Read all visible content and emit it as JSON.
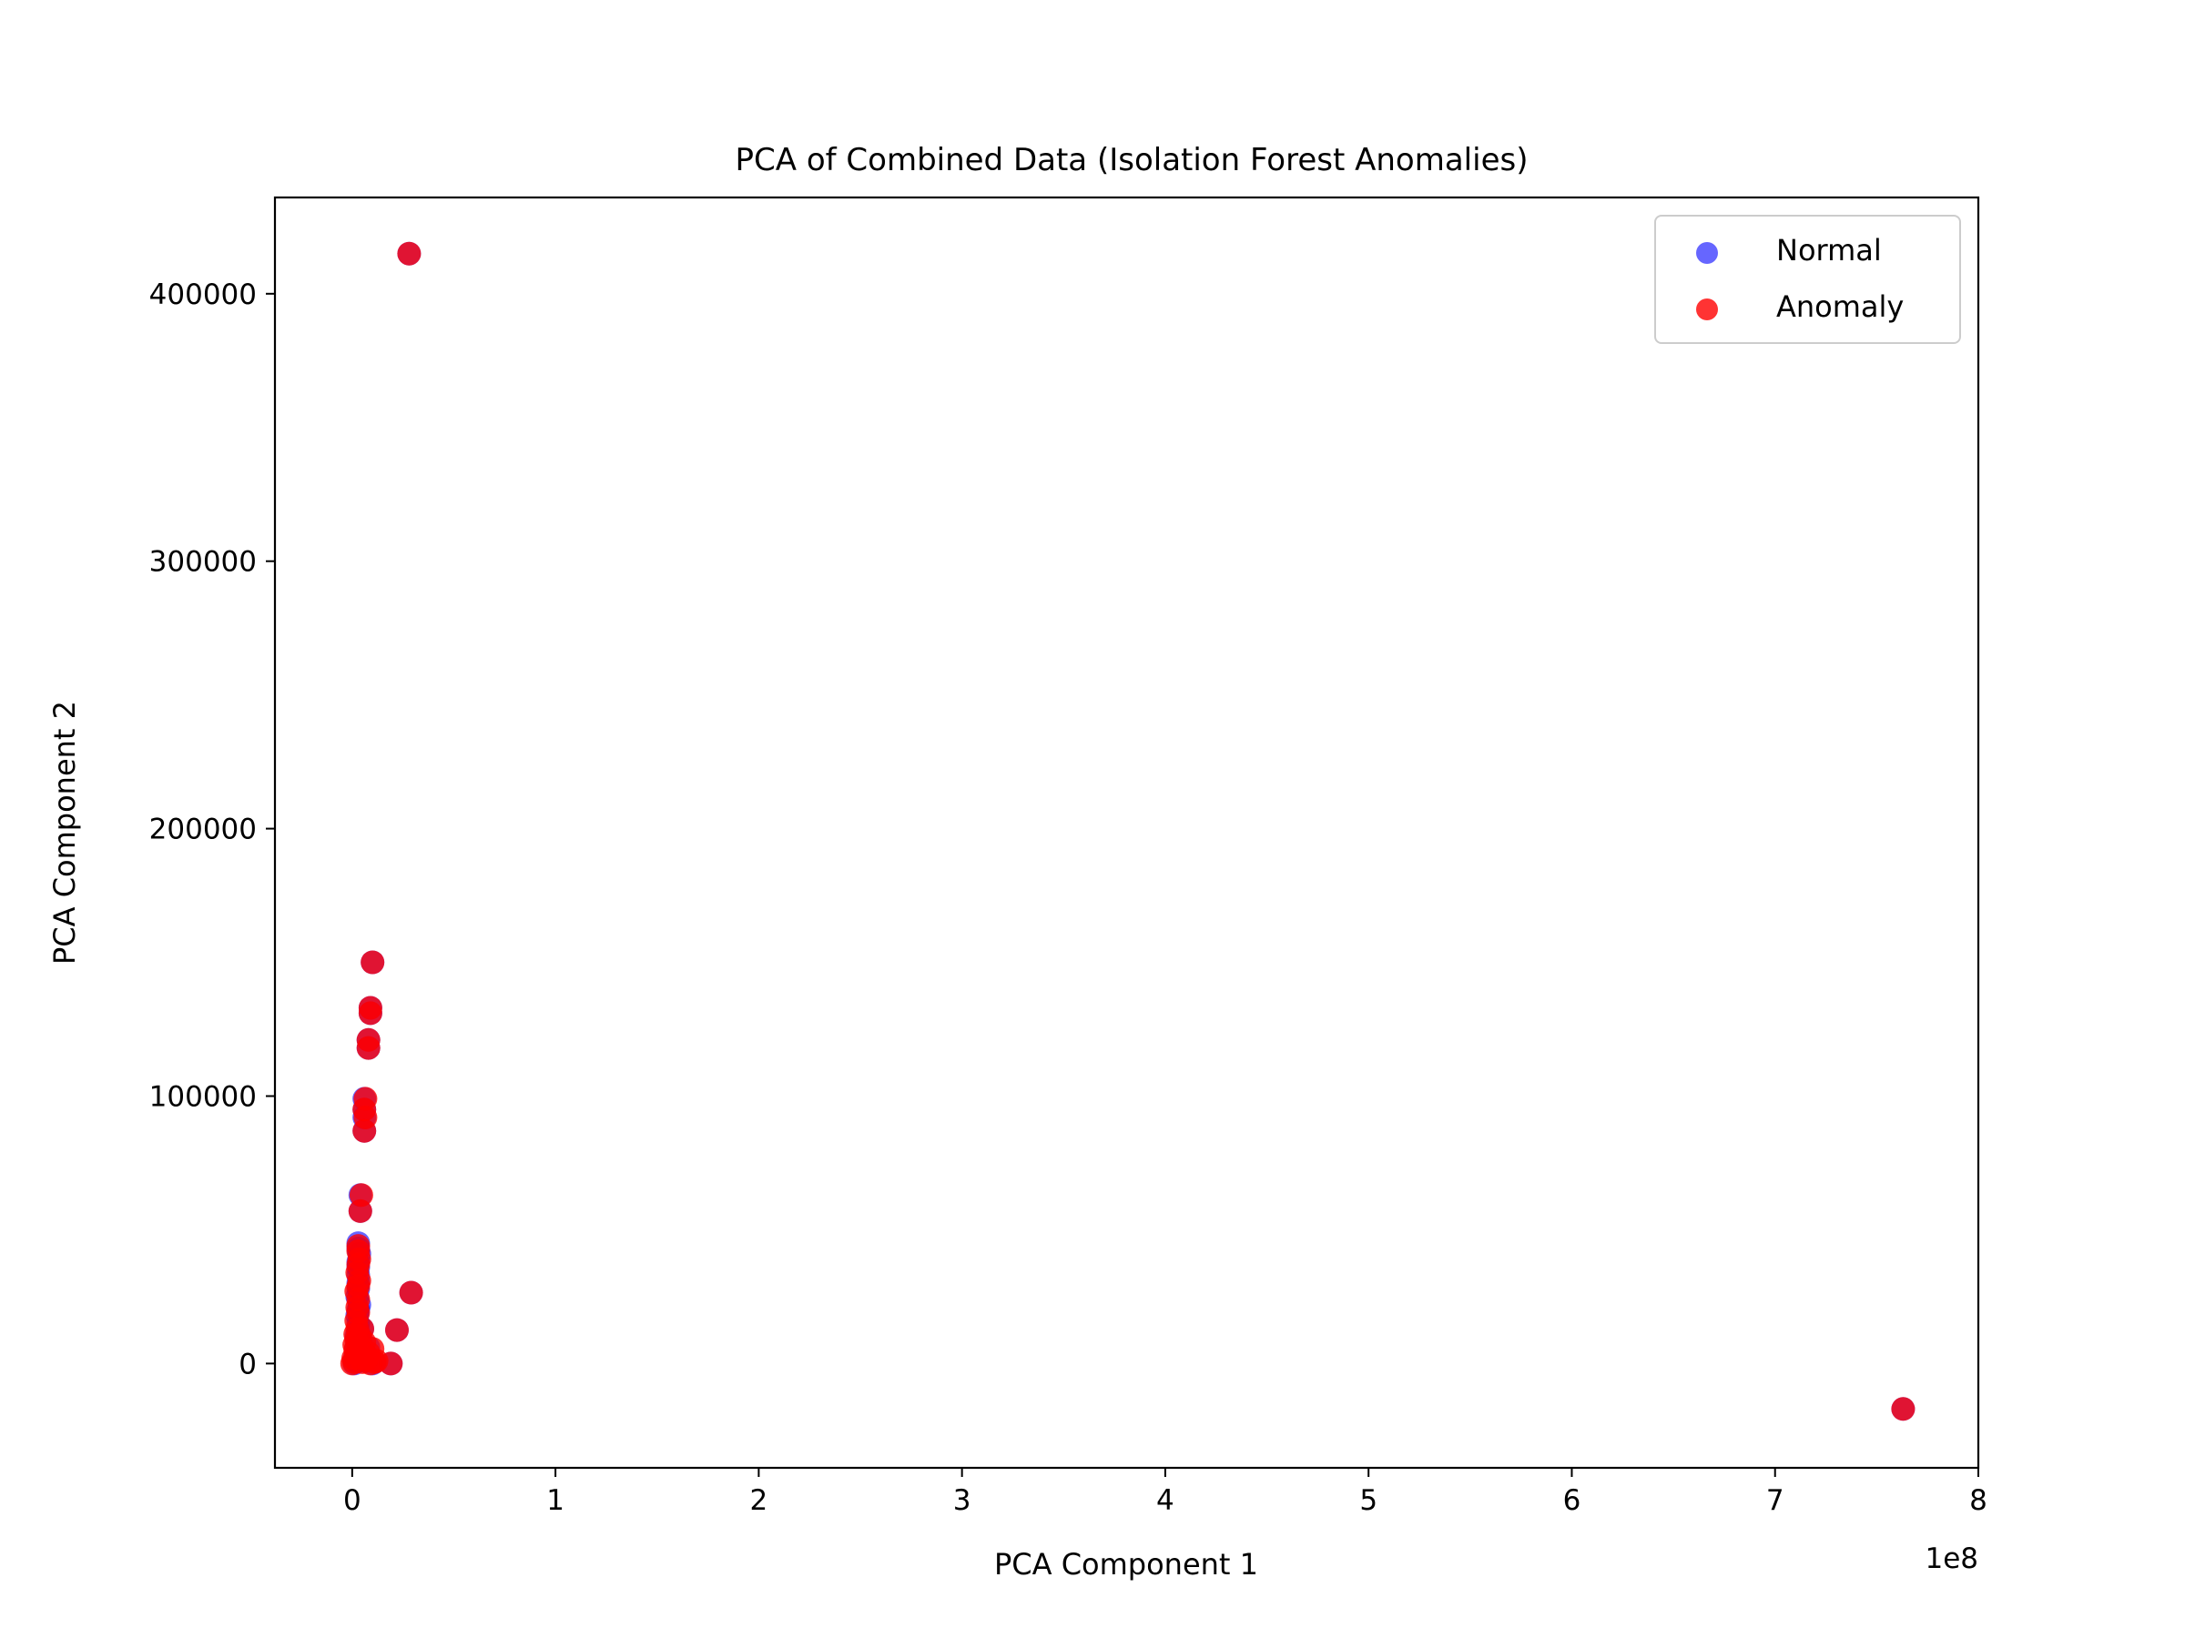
{
  "chart_data": {
    "type": "scatter",
    "title": "PCA of Combined Data (Isolation Forest Anomalies)",
    "xlabel": "PCA Component 1",
    "ylabel": "PCA Component 2",
    "x_offset_text": "1e8",
    "x_scale_factor": 100000000,
    "xlim": [
      -0.38,
      8.0
    ],
    "ylim": [
      -39000,
      436000
    ],
    "x_ticks": [
      0,
      1,
      2,
      3,
      4,
      5,
      6,
      7,
      8
    ],
    "x_tick_labels": [
      "0",
      "1",
      "2",
      "3",
      "4",
      "5",
      "6",
      "7",
      "8"
    ],
    "y_ticks": [
      0,
      100000,
      200000,
      300000,
      400000
    ],
    "y_tick_labels": [
      "0",
      "100000",
      "200000",
      "300000",
      "400000"
    ],
    "grid": false,
    "legend": {
      "placement": "top-right",
      "entries": [
        "Normal",
        "Anomaly"
      ]
    },
    "series": [
      {
        "name": "Normal",
        "color": "#0000ff",
        "points": [
          [
            0.01,
            0
          ],
          [
            0.02,
            1000
          ],
          [
            0.015,
            2500
          ],
          [
            0.03,
            4000
          ],
          [
            0.02,
            6000
          ],
          [
            0.04,
            8000
          ],
          [
            0.02,
            10000
          ],
          [
            0.03,
            12000
          ],
          [
            0.03,
            15000
          ],
          [
            0.025,
            18000
          ],
          [
            0.03,
            20000
          ],
          [
            0.035,
            22000
          ],
          [
            0.025,
            25000
          ],
          [
            0.03,
            28000
          ],
          [
            0.03,
            30000
          ],
          [
            0.03,
            33000
          ],
          [
            0.03,
            36000
          ],
          [
            0.03,
            38000
          ],
          [
            0.035,
            41000
          ],
          [
            0.03,
            43000
          ],
          [
            0.03,
            45000
          ],
          [
            0.04,
            57000
          ],
          [
            0.04,
            63000
          ],
          [
            0.06,
            87000
          ],
          [
            0.06,
            92000
          ],
          [
            0.06,
            95000
          ],
          [
            0.06,
            99000
          ],
          [
            0.08,
            118000
          ],
          [
            0.08,
            121000
          ],
          [
            0.09,
            131000
          ],
          [
            0.09,
            133000
          ],
          [
            0.1,
            150000
          ],
          [
            0.28,
            415000
          ],
          [
            0.29,
            26500
          ],
          [
            0.22,
            12500
          ],
          [
            0.19,
            0
          ],
          [
            0.06,
            1000
          ],
          [
            0.08,
            2000
          ],
          [
            0.1,
            0
          ],
          [
            0.08,
            6000
          ],
          [
            0.05,
            13000
          ],
          [
            7.63,
            -17000
          ]
        ]
      },
      {
        "name": "Anomaly",
        "color": "#ff0000",
        "points": [
          [
            0.0,
            0
          ],
          [
            0.01,
            500
          ],
          [
            0.005,
            2000
          ],
          [
            0.02,
            3500
          ],
          [
            0.015,
            5000
          ],
          [
            0.01,
            7000
          ],
          [
            0.02,
            9000
          ],
          [
            0.015,
            11000
          ],
          [
            0.025,
            13000
          ],
          [
            0.02,
            16000
          ],
          [
            0.03,
            19000
          ],
          [
            0.025,
            21000
          ],
          [
            0.03,
            24000
          ],
          [
            0.02,
            27000
          ],
          [
            0.03,
            29000
          ],
          [
            0.035,
            31000
          ],
          [
            0.025,
            34000
          ],
          [
            0.03,
            37000
          ],
          [
            0.035,
            39000
          ],
          [
            0.03,
            42000
          ],
          [
            0.03,
            44000
          ],
          [
            0.04,
            57000
          ],
          [
            0.045,
            63000
          ],
          [
            0.06,
            87000
          ],
          [
            0.065,
            92000
          ],
          [
            0.06,
            95000
          ],
          [
            0.065,
            99000
          ],
          [
            0.08,
            118000
          ],
          [
            0.08,
            121000
          ],
          [
            0.09,
            131000
          ],
          [
            0.09,
            133000
          ],
          [
            0.1,
            150000
          ],
          [
            0.28,
            415000
          ],
          [
            0.29,
            26500
          ],
          [
            0.22,
            12500
          ],
          [
            0.19,
            0
          ],
          [
            0.05,
            500
          ],
          [
            0.07,
            1500
          ],
          [
            0.09,
            0
          ],
          [
            0.11,
            500
          ],
          [
            0.08,
            4000
          ],
          [
            0.1,
            5500
          ],
          [
            0.06,
            8000
          ],
          [
            0.04,
            10000
          ],
          [
            0.05,
            13000
          ],
          [
            0.12,
            1000
          ],
          [
            0.07,
            3000
          ],
          [
            7.63,
            -17000
          ]
        ]
      }
    ]
  }
}
